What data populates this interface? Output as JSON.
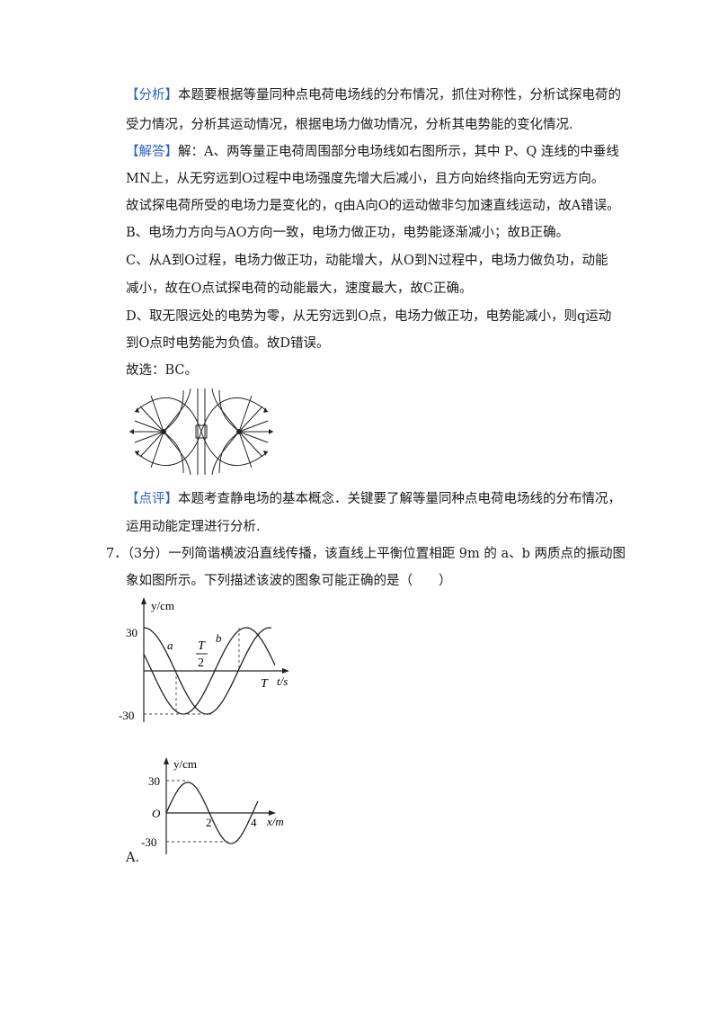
{
  "analysis": {
    "tag": "【分析】",
    "line1": "本题要根据等量同种点电荷电场线的分布情况，抓住对称性，分析试探电荷的",
    "line2": "受力情况，分析其运动情况，根据电场力做功情况，分析其电势能的变化情况."
  },
  "solution": {
    "tag": "【解答】",
    "line1": "解：A、两等量正电荷周围部分电场线如右图所示，其中 P、Q 连线的中垂线",
    "line2": "MN上，从无穷远到O过程中电场强度先增大后减小，且方向始终指向无穷远方向。",
    "line3": "故试探电荷所受的电场力是变化的，q由A向O的运动做非匀加速直线运动，故A错误。",
    "line4": "B、电场力方向与AO方向一致，电场力做正功，电势能逐渐减小；故B正确。",
    "line5": "C、从A到O过程，电场力做正功，动能增大，从O到N过程中，电场力做负功，动能",
    "line6": "减小，故在O点试探电荷的动能最大，速度最大，故C正确。",
    "line7": "D、取无限远处的电势为零，从无穷远到O点，电场力做正功，电势能减小，则q运动",
    "line8": "到O点时电势能为负值。故D错误。",
    "answer": "故选：BC。"
  },
  "comment": {
    "tag": "【点评】",
    "line1": "本题考查静电场的基本概念．关键要了解等量同种点电荷电场线的分布情况，",
    "line2": "运用动能定理进行分析."
  },
  "question7": {
    "line1": "7．（3分）一列简谐横波沿直线传播，该直线上平衡位置相距 9m 的 a、b 两质点的振动图",
    "line2": "象如图所示。下列描述该波的图象可能正确的是（　　）"
  },
  "vib_graph": {
    "ylabel": "y/cm",
    "y_top": "30",
    "y_bottom": "-30",
    "label_a": "a",
    "label_b": "b",
    "half_T_num": "T",
    "half_T_den": "2",
    "label_T": "T",
    "xlabel": "t/s"
  },
  "option_a": {
    "ylabel": "y/cm",
    "y_top": "30",
    "y_bottom": "-30",
    "origin": "O",
    "tick2": "2",
    "tick4": "4",
    "xlabel": "x/m",
    "label": "A."
  }
}
